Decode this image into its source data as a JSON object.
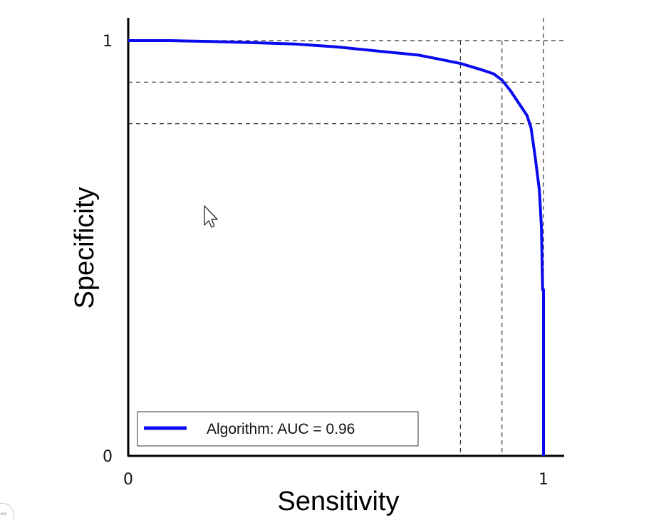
{
  "chart_data": {
    "type": "line",
    "title": "",
    "xlabel": "Sensitivity",
    "ylabel": "Specificity",
    "xlim": [
      0,
      1
    ],
    "ylim": [
      0,
      1
    ],
    "x_ticks": [
      {
        "value": 0,
        "label": "0"
      },
      {
        "value": 1,
        "label": "1"
      }
    ],
    "y_ticks": [
      {
        "value": 0,
        "label": "0"
      },
      {
        "value": 1,
        "label": "1"
      }
    ],
    "grid": false,
    "legend": {
      "placement": "bottom-left",
      "entries": [
        {
          "label": "Algorithm: AUC = 0.96",
          "color": "#0a0aee"
        }
      ]
    },
    "reference_lines": {
      "horizontal": [
        1.0,
        0.9,
        0.8
      ],
      "vertical": [
        0.8,
        0.9,
        1.0
      ]
    },
    "series": [
      {
        "color": "#0a0aee",
        "points": [
          [
            0.0,
            1.0
          ],
          [
            0.1,
            1.0
          ],
          [
            0.2,
            0.998
          ],
          [
            0.3,
            0.995
          ],
          [
            0.4,
            0.992
          ],
          [
            0.5,
            0.985
          ],
          [
            0.6,
            0.975
          ],
          [
            0.7,
            0.965
          ],
          [
            0.75,
            0.955
          ],
          [
            0.8,
            0.945
          ],
          [
            0.85,
            0.93
          ],
          [
            0.88,
            0.92
          ],
          [
            0.9,
            0.905
          ],
          [
            0.92,
            0.88
          ],
          [
            0.94,
            0.85
          ],
          [
            0.96,
            0.82
          ],
          [
            0.97,
            0.79
          ],
          [
            0.98,
            0.72
          ],
          [
            0.99,
            0.64
          ],
          [
            0.995,
            0.55
          ],
          [
            0.998,
            0.4
          ],
          [
            1.0,
            0.4
          ],
          [
            1.0,
            0.0
          ]
        ]
      }
    ]
  },
  "overlay": {
    "cursor_icon": "pointer-arrow-icon",
    "corner_badge_text": "ooo",
    "corner_badge_icon": "circle-badge-icon"
  }
}
